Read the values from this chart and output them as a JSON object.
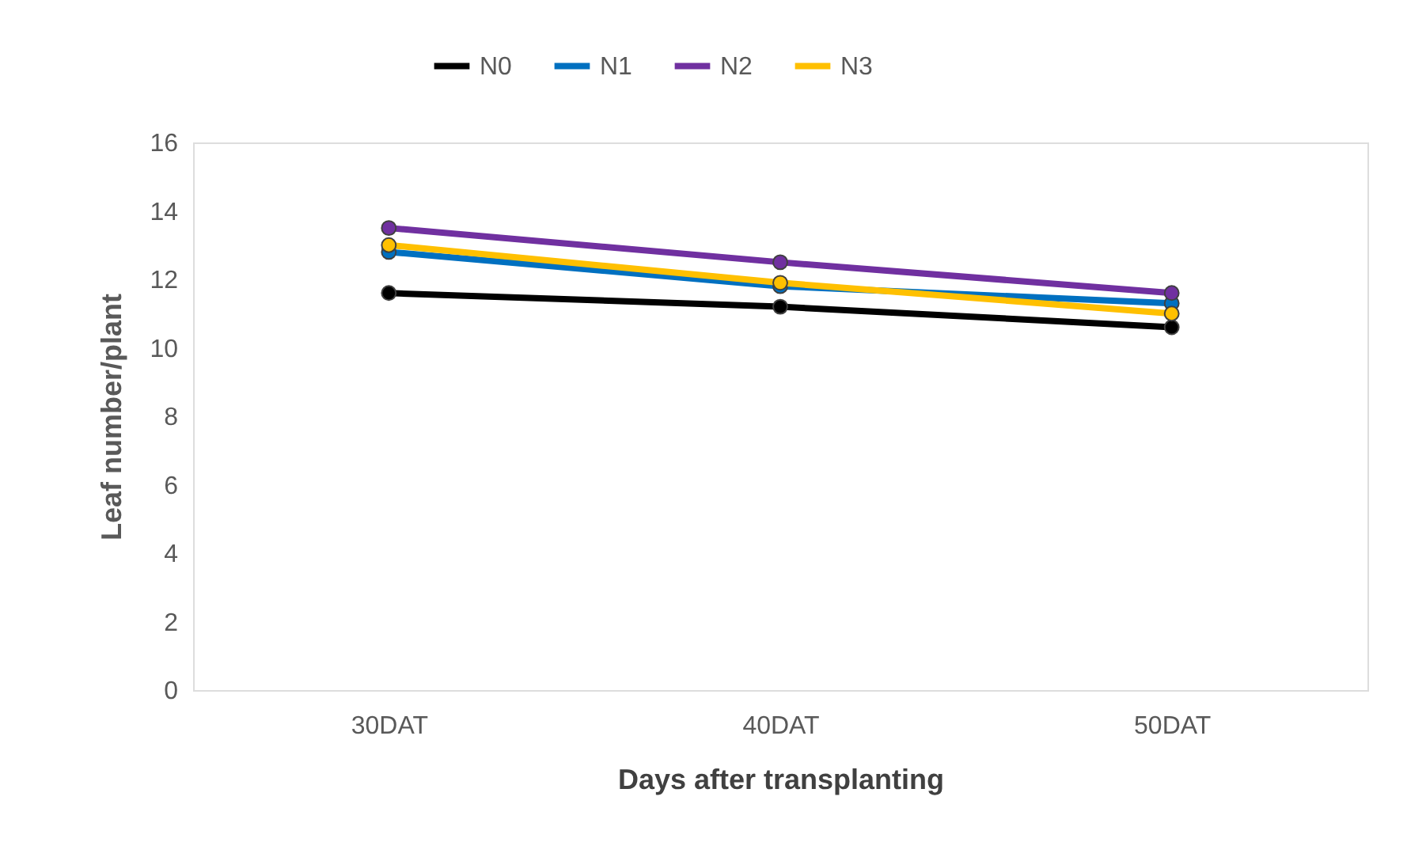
{
  "chart_data": {
    "type": "line",
    "xlabel": "Days after transplanting",
    "ylabel": "Leaf number/plant",
    "categories": [
      "30DAT",
      "40DAT",
      "50DAT"
    ],
    "series": [
      {
        "name": "N0",
        "color": "#000000",
        "values": [
          11.6,
          11.2,
          10.6
        ]
      },
      {
        "name": "N1",
        "color": "#0070c0",
        "values": [
          12.8,
          11.8,
          11.3
        ]
      },
      {
        "name": "N2",
        "color": "#7030a0",
        "values": [
          13.5,
          12.5,
          11.6
        ]
      },
      {
        "name": "N3",
        "color": "#ffc000",
        "values": [
          13.0,
          11.9,
          11.0
        ]
      }
    ],
    "ylim": [
      0,
      16
    ],
    "yticks": [
      0,
      2,
      4,
      6,
      8,
      10,
      12,
      14,
      16
    ],
    "grid": false,
    "legend": "top",
    "marker": "circle",
    "line_style": "solid"
  }
}
